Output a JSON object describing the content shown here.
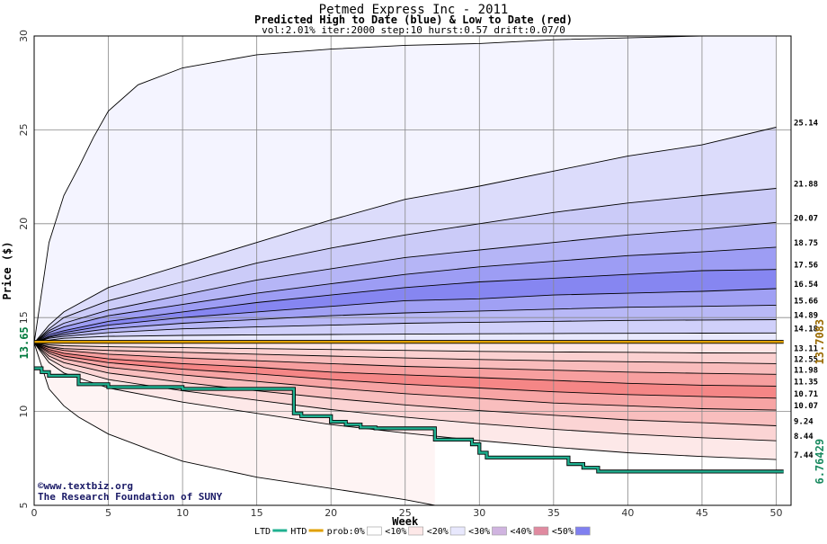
{
  "chart_data": {
    "type": "area",
    "title": "Petmed Express Inc - 2011",
    "subtitle": "Predicted High to Date (blue) &  Low to Date (red)",
    "params": "vol:2.01% iter:2000 step:10 hurst:0.57 drift:0.07/0",
    "xlabel": "Week",
    "ylabel": "Price ($)",
    "xlim": [
      0,
      51
    ],
    "ylim": [
      5,
      30
    ],
    "x_ticks": [
      0,
      5,
      10,
      15,
      20,
      25,
      30,
      35,
      40,
      45,
      50
    ],
    "y_ticks": [
      5,
      10,
      15,
      20,
      25,
      30
    ],
    "grid": true,
    "start_price": 13.65,
    "start_price_label": "13.65",
    "current_price": 13.7083,
    "current_price_label": "13.7083",
    "low_to_date_label": "6.76429",
    "end_labels": [
      "25.14",
      "21.88",
      "20.07",
      "18.75",
      "17.56",
      "16.54",
      "15.66",
      "14.89",
      "14.18",
      "13.11",
      "12.55",
      "11.98",
      "11.35",
      "10.71",
      "10.07",
      "9.24",
      "8.44",
      "7.44"
    ],
    "high_bands": [
      {
        "x": [
          0,
          1,
          2,
          3,
          4,
          5,
          7,
          10,
          15,
          20,
          25,
          30,
          35,
          40,
          45,
          50
        ],
        "y": [
          13.65,
          19.0,
          21.5,
          23.0,
          24.6,
          26.0,
          27.4,
          28.3,
          29.0,
          29.3,
          29.5,
          29.6,
          29.8,
          29.9,
          30.0,
          30.0
        ]
      },
      {
        "x": [
          0,
          1,
          2,
          5,
          10,
          15,
          20,
          25,
          30,
          35,
          40,
          45,
          50
        ],
        "y": [
          13.65,
          14.6,
          15.3,
          16.6,
          17.8,
          19.0,
          20.2,
          21.3,
          22.0,
          22.8,
          23.6,
          24.2,
          25.14
        ]
      },
      {
        "x": [
          0,
          1,
          2,
          5,
          10,
          15,
          20,
          25,
          30,
          35,
          40,
          45,
          50
        ],
        "y": [
          13.65,
          14.4,
          15.0,
          15.9,
          16.9,
          17.9,
          18.7,
          19.4,
          20.0,
          20.6,
          21.1,
          21.5,
          21.88
        ]
      },
      {
        "x": [
          0,
          1,
          2,
          5,
          10,
          15,
          20,
          25,
          30,
          35,
          40,
          45,
          50
        ],
        "y": [
          13.65,
          14.3,
          14.7,
          15.4,
          16.2,
          17.0,
          17.6,
          18.2,
          18.6,
          19.0,
          19.4,
          19.7,
          20.07
        ]
      },
      {
        "x": [
          0,
          1,
          2,
          5,
          10,
          15,
          20,
          25,
          30,
          35,
          40,
          45,
          50
        ],
        "y": [
          13.65,
          14.2,
          14.5,
          15.1,
          15.7,
          16.3,
          16.8,
          17.3,
          17.7,
          18.0,
          18.3,
          18.5,
          18.75
        ]
      },
      {
        "x": [
          0,
          1,
          2,
          5,
          10,
          15,
          20,
          25,
          30,
          35,
          40,
          45,
          50
        ],
        "y": [
          13.65,
          14.1,
          14.3,
          14.8,
          15.3,
          15.8,
          16.2,
          16.6,
          16.9,
          17.1,
          17.3,
          17.5,
          17.56
        ]
      },
      {
        "x": [
          0,
          1,
          2,
          5,
          10,
          15,
          20,
          25,
          30,
          35,
          40,
          45,
          50
        ],
        "y": [
          13.65,
          14.0,
          14.2,
          14.6,
          15.0,
          15.3,
          15.6,
          15.9,
          16.0,
          16.2,
          16.3,
          16.4,
          16.54
        ]
      },
      {
        "x": [
          0,
          1,
          2,
          5,
          10,
          15,
          20,
          25,
          30,
          35,
          40,
          45,
          50
        ],
        "y": [
          13.65,
          13.95,
          14.1,
          14.4,
          14.7,
          14.9,
          15.1,
          15.25,
          15.35,
          15.45,
          15.55,
          15.6,
          15.66
        ]
      },
      {
        "x": [
          0,
          1,
          2,
          5,
          10,
          15,
          20,
          25,
          30,
          35,
          40,
          45,
          50
        ],
        "y": [
          13.65,
          13.9,
          14.0,
          14.2,
          14.4,
          14.5,
          14.6,
          14.7,
          14.75,
          14.8,
          14.85,
          14.87,
          14.89
        ]
      },
      {
        "x": [
          0,
          1,
          2,
          5,
          10,
          15,
          20,
          25,
          30,
          35,
          40,
          45,
          50
        ],
        "y": [
          13.65,
          13.8,
          13.9,
          14.0,
          14.05,
          14.08,
          14.1,
          14.12,
          14.14,
          14.15,
          14.16,
          14.17,
          14.18
        ]
      }
    ],
    "low_bands": [
      {
        "x": [
          0,
          1,
          2,
          5,
          10,
          15,
          20,
          25,
          30,
          35,
          40,
          45,
          50
        ],
        "y": [
          13.65,
          13.55,
          13.5,
          13.45,
          13.4,
          13.35,
          13.3,
          13.25,
          13.2,
          13.17,
          13.15,
          13.12,
          13.11
        ]
      },
      {
        "x": [
          0,
          1,
          2,
          5,
          10,
          15,
          20,
          25,
          30,
          35,
          40,
          45,
          50
        ],
        "y": [
          13.65,
          13.45,
          13.35,
          13.25,
          13.15,
          13.05,
          12.95,
          12.85,
          12.77,
          12.7,
          12.65,
          12.6,
          12.55
        ]
      },
      {
        "x": [
          0,
          1,
          2,
          5,
          10,
          15,
          20,
          25,
          30,
          35,
          40,
          45,
          50
        ],
        "y": [
          13.65,
          13.4,
          13.25,
          13.05,
          12.85,
          12.7,
          12.55,
          12.4,
          12.3,
          12.2,
          12.1,
          12.03,
          11.98
        ]
      },
      {
        "x": [
          0,
          1,
          2,
          5,
          10,
          15,
          20,
          25,
          30,
          35,
          40,
          45,
          50
        ],
        "y": [
          13.65,
          13.3,
          13.1,
          12.8,
          12.55,
          12.35,
          12.1,
          11.95,
          11.8,
          11.65,
          11.5,
          11.4,
          11.35
        ]
      },
      {
        "x": [
          0,
          1,
          2,
          5,
          10,
          15,
          20,
          25,
          30,
          35,
          40,
          45,
          50
        ],
        "y": [
          13.65,
          13.2,
          12.95,
          12.6,
          12.25,
          12.0,
          11.7,
          11.45,
          11.25,
          11.05,
          10.9,
          10.8,
          10.71
        ]
      },
      {
        "x": [
          0,
          1,
          2,
          5,
          10,
          15,
          20,
          25,
          30,
          35,
          40,
          45,
          50
        ],
        "y": [
          13.65,
          13.1,
          12.8,
          12.35,
          11.95,
          11.6,
          11.25,
          10.95,
          10.7,
          10.45,
          10.3,
          10.15,
          10.07
        ]
      },
      {
        "x": [
          0,
          1,
          2,
          5,
          10,
          15,
          20,
          25,
          30,
          35,
          40,
          45,
          50
        ],
        "y": [
          13.65,
          12.95,
          12.6,
          12.05,
          11.55,
          11.1,
          10.7,
          10.35,
          10.05,
          9.8,
          9.55,
          9.4,
          9.24
        ]
      },
      {
        "x": [
          0,
          1,
          2,
          5,
          10,
          15,
          20,
          25,
          30,
          35,
          40,
          45,
          50
        ],
        "y": [
          13.65,
          12.8,
          12.35,
          11.7,
          11.1,
          10.6,
          10.1,
          9.7,
          9.35,
          9.05,
          8.8,
          8.6,
          8.44
        ]
      },
      {
        "x": [
          0,
          1,
          2,
          5,
          10,
          15,
          20,
          25,
          30,
          35,
          40,
          45,
          50
        ],
        "y": [
          13.65,
          12.6,
          12.05,
          11.25,
          10.5,
          9.9,
          9.3,
          8.85,
          8.45,
          8.1,
          7.8,
          7.6,
          7.44
        ]
      },
      {
        "x": [
          0,
          1,
          2,
          3,
          5,
          8,
          10,
          15,
          20,
          25,
          27
        ],
        "y": [
          13.65,
          11.2,
          10.3,
          9.7,
          8.8,
          7.9,
          7.35,
          6.5,
          5.9,
          5.3,
          5.0
        ]
      }
    ],
    "htd_series": {
      "x": [
        0,
        50.5
      ],
      "y": [
        13.7083,
        13.7083
      ]
    },
    "ltd_series": {
      "x": [
        0,
        0.5,
        0.5,
        1,
        1,
        3,
        3,
        5,
        5,
        10,
        10,
        17.5,
        17.5,
        18,
        18,
        20,
        20,
        21,
        21,
        22,
        22,
        23,
        23,
        27,
        27,
        29.5,
        29.5,
        30,
        30,
        30.5,
        30.5,
        36,
        36,
        37,
        37,
        38,
        38,
        50.5
      ],
      "y": [
        12.3,
        12.3,
        12.1,
        12.1,
        11.9,
        11.9,
        11.45,
        11.45,
        11.3,
        11.3,
        11.2,
        11.2,
        9.9,
        9.9,
        9.75,
        9.75,
        9.45,
        9.45,
        9.3,
        9.3,
        9.15,
        9.15,
        9.1,
        9.1,
        8.5,
        8.5,
        8.25,
        8.25,
        7.8,
        7.8,
        7.55,
        7.55,
        7.2,
        7.2,
        7.0,
        7.0,
        6.8,
        6.8
      ]
    },
    "high_fill_colors": [
      "#f4f4ff",
      "#dcdcfb",
      "#cbcbf8",
      "#b5b5f6",
      "#9d9df4",
      "#8686f1",
      "#a0a0f4",
      "#b8b8f6",
      "#d0d0fa",
      "#e8e8fd"
    ],
    "low_fill_colors": [
      "#fde5e5",
      "#fbd0d0",
      "#f9bcbc",
      "#f79f9f",
      "#f58686",
      "#f7a4a4",
      "#f9bebe",
      "#fbd4d4",
      "#fde8e8",
      "#fef4f4"
    ],
    "htd_color": "#e0a000",
    "ltd_color": "#20b090",
    "credits": [
      "©www.textbiz.org",
      "The Research Foundation of SUNY"
    ],
    "legend": [
      {
        "label": "LTD",
        "swatch": "line",
        "color": "#20b090"
      },
      {
        "label": "HTD",
        "swatch": "line",
        "color": "#e0a000"
      },
      {
        "label": "prob:0%",
        "swatch": "box",
        "color": "#ffffff"
      },
      {
        "label": "<10%",
        "swatch": "box",
        "color": "#fde8e8"
      },
      {
        "label": "<20%",
        "swatch": "box",
        "color": "#e8e8fd"
      },
      {
        "label": "<30%",
        "swatch": "box",
        "color": "#d0b4e0"
      },
      {
        "label": "<40%",
        "swatch": "box",
        "color": "#e08aa0"
      },
      {
        "label": "<50%",
        "swatch": "box",
        "color": "#8080f0"
      }
    ]
  }
}
